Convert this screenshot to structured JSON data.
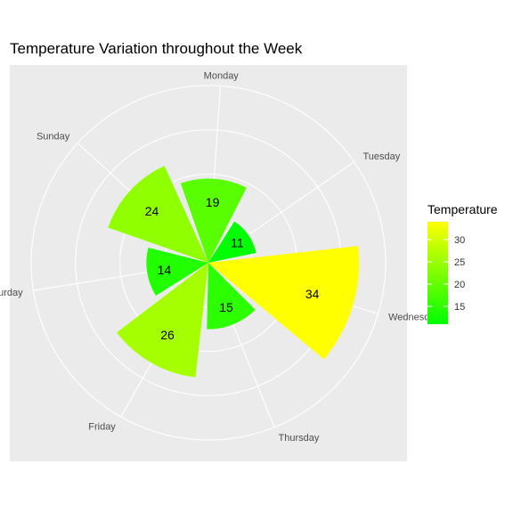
{
  "chart_data": {
    "type": "polar-bar",
    "title": "Temperature Variation throughout the Week",
    "categories": [
      "Sunday",
      "Monday",
      "Tuesday",
      "Wednesday",
      "Thursday",
      "Friday",
      "Saturday"
    ],
    "values": [
      24,
      19,
      11,
      34,
      15,
      26,
      14
    ],
    "data_labels": [
      "24",
      "19",
      "11",
      "34",
      "15",
      "26",
      "14"
    ],
    "radial_grid": [
      10,
      20,
      30,
      40
    ],
    "radial_max": 40,
    "grid": true,
    "legend": {
      "title": "Temperature",
      "placement": "right",
      "ticks": [
        15,
        20,
        25,
        30
      ],
      "tick_labels": [
        "15",
        "20",
        "25",
        "30"
      ],
      "range": [
        11,
        34
      ],
      "low_color": "#00ff00",
      "high_color": "#ffff00"
    },
    "panel_color": "#ebebeb",
    "grid_color": "#ffffff"
  }
}
